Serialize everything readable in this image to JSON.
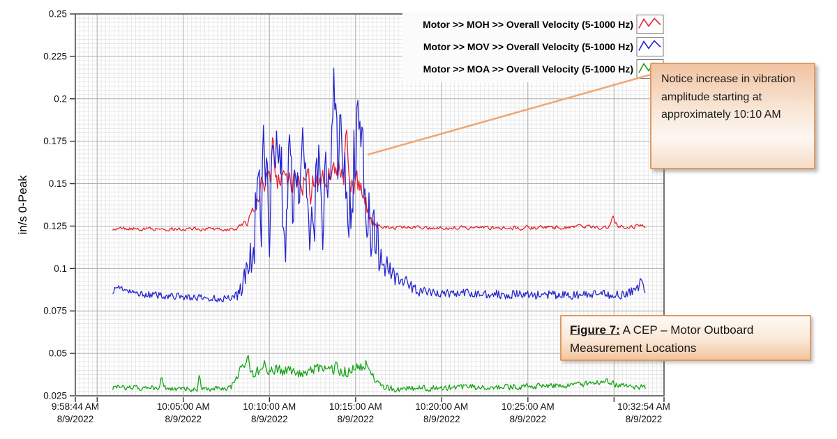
{
  "annotation": {
    "text": "Notice increase in vibration amplitude starting at approximately 10:10 AM",
    "accent_color": "#DD9A63",
    "leader_color": "#F0A875"
  },
  "caption": {
    "label": "Figure 7:",
    "text": " A CEP – Motor Outboard Measurement Locations"
  },
  "chart_data": {
    "type": "line",
    "title": "",
    "xlabel": "",
    "ylabel": "in/s 0-Peak",
    "ylim": [
      0.025,
      0.25
    ],
    "grid": true,
    "legend_position": "top-inside-right",
    "x_range_s": [
      0,
      2050
    ],
    "x_minor_step_s": 15,
    "y_minor_step": 0.0025,
    "y_ticks": [
      {
        "v": 0.25,
        "label": "0.25"
      },
      {
        "v": 0.225,
        "label": "0.225"
      },
      {
        "v": 0.2,
        "label": "0.2"
      },
      {
        "v": 0.175,
        "label": "0.175"
      },
      {
        "v": 0.15,
        "label": "0.15"
      },
      {
        "v": 0.125,
        "label": "0.125"
      },
      {
        "v": 0.1,
        "label": "0.1"
      },
      {
        "v": 0.075,
        "label": "0.075"
      },
      {
        "v": 0.05,
        "label": "0.05"
      },
      {
        "v": 0.025,
        "label": "0.025"
      }
    ],
    "x_ticks": [
      {
        "t": 0,
        "time": "9:58:44 AM",
        "date": "8/9/2022",
        "grid": false
      },
      {
        "t": 76,
        "grid": true
      },
      {
        "t": 376,
        "time": "10:05:00 AM",
        "date": "8/9/2022",
        "grid": true
      },
      {
        "t": 676,
        "time": "10:10:00 AM",
        "date": "8/9/2022",
        "grid": true
      },
      {
        "t": 976,
        "time": "10:15:00 AM",
        "date": "8/9/2022",
        "grid": true
      },
      {
        "t": 1276,
        "time": "10:20:00 AM",
        "date": "8/9/2022",
        "grid": true
      },
      {
        "t": 1576,
        "time": "10:25:00 AM",
        "date": "8/9/2022",
        "grid": true
      },
      {
        "t": 1876,
        "grid": true
      },
      {
        "t": 2050,
        "time": "10:32:54 AM",
        "date": "8/9/2022",
        "grid": false,
        "lx": 923
      }
    ],
    "event": {
      "description": "Vibration amplitude increase starting at approximately 10:10 AM",
      "start_clock": "10:09",
      "end_clock": "10:16"
    },
    "series": [
      {
        "name": "Motor >> MOH >> Overall Velocity (5-1000 Hz)",
        "short": "MOH",
        "color": "#E8232E",
        "seed": 7,
        "jaggedness": 0.55,
        "baseline": 0.1235,
        "event_peak": 0.187,
        "mean_anchors": [
          [
            130,
            0.1235
          ],
          [
            560,
            0.1232
          ],
          [
            600,
            0.128
          ],
          [
            640,
            0.146
          ],
          [
            680,
            0.155
          ],
          [
            730,
            0.15
          ],
          [
            790,
            0.153
          ],
          [
            850,
            0.152
          ],
          [
            900,
            0.157
          ],
          [
            945,
            0.156
          ],
          [
            985,
            0.148
          ],
          [
            1010,
            0.138
          ],
          [
            1035,
            0.127
          ],
          [
            1055,
            0.1243
          ],
          [
            1400,
            0.124
          ],
          [
            1855,
            0.1243
          ],
          [
            1872,
            0.1295
          ],
          [
            1890,
            0.1245
          ],
          [
            1988,
            0.1252
          ]
        ],
        "noise_anchors": [
          [
            130,
            0.0013
          ],
          [
            570,
            0.0013
          ],
          [
            620,
            0.0045
          ],
          [
            660,
            0.0095
          ],
          [
            1000,
            0.0095
          ],
          [
            1030,
            0.0045
          ],
          [
            1065,
            0.0013
          ],
          [
            1988,
            0.0015
          ]
        ],
        "spikes": [
          [
            688,
            0.184
          ],
          [
            944,
            0.187
          ],
          [
            820,
            0.137
          ],
          [
            1872,
            0.131
          ]
        ]
      },
      {
        "name": "Motor >> MOV >> Overall Velocity (5-1000 Hz)",
        "short": "MOV",
        "color": "#2626CD",
        "seed": 13,
        "jaggedness": 0.95,
        "baseline": 0.085,
        "event_peak": 0.218,
        "mean_anchors": [
          [
            130,
            0.087
          ],
          [
            155,
            0.0895
          ],
          [
            185,
            0.086
          ],
          [
            260,
            0.0845
          ],
          [
            360,
            0.0835
          ],
          [
            470,
            0.0822
          ],
          [
            530,
            0.0825
          ],
          [
            565,
            0.0845
          ],
          [
            585,
            0.092
          ],
          [
            612,
            0.106
          ],
          [
            640,
            0.138
          ],
          [
            665,
            0.15
          ],
          [
            700,
            0.142
          ],
          [
            745,
            0.15
          ],
          [
            780,
            0.143
          ],
          [
            815,
            0.136
          ],
          [
            845,
            0.148
          ],
          [
            875,
            0.16
          ],
          [
            900,
            0.175
          ],
          [
            915,
            0.158
          ],
          [
            935,
            0.148
          ],
          [
            960,
            0.15
          ],
          [
            983,
            0.17
          ],
          [
            1000,
            0.153
          ],
          [
            1013,
            0.145
          ],
          [
            1028,
            0.128
          ],
          [
            1055,
            0.11
          ],
          [
            1085,
            0.101
          ],
          [
            1125,
            0.095
          ],
          [
            1175,
            0.088
          ],
          [
            1235,
            0.0855
          ],
          [
            1450,
            0.085
          ],
          [
            1700,
            0.0842
          ],
          [
            1900,
            0.0848
          ],
          [
            1955,
            0.087
          ],
          [
            1968,
            0.0925
          ],
          [
            1980,
            0.087
          ],
          [
            1988,
            0.0858
          ]
        ],
        "noise_anchors": [
          [
            130,
            0.002
          ],
          [
            545,
            0.0022
          ],
          [
            595,
            0.0075
          ],
          [
            640,
            0.03
          ],
          [
            1015,
            0.03
          ],
          [
            1045,
            0.016
          ],
          [
            1090,
            0.008
          ],
          [
            1150,
            0.0045
          ],
          [
            1235,
            0.0028
          ],
          [
            1988,
            0.0028
          ]
        ],
        "spikes": [
          [
            656,
            0.187
          ],
          [
            700,
            0.184
          ],
          [
            747,
            0.18
          ],
          [
            791,
            0.186
          ],
          [
            900,
            0.218
          ],
          [
            908,
            0.204
          ],
          [
            923,
            0.193
          ],
          [
            985,
            0.2
          ],
          [
            997,
            0.19
          ],
          [
            676,
            0.107
          ],
          [
            732,
            0.104
          ],
          [
            817,
            0.103
          ],
          [
            862,
            0.107
          ],
          [
            951,
            0.112
          ],
          [
            1970,
            0.094
          ]
        ]
      },
      {
        "name": "Motor >> MOA >> Overall Velocity (5-1000 Hz)",
        "short": "MOA",
        "color": "#17A317",
        "seed": 21,
        "jaggedness": 0.8,
        "baseline": 0.03,
        "event_peak": 0.0495,
        "mean_anchors": [
          [
            130,
            0.03
          ],
          [
            260,
            0.0296
          ],
          [
            420,
            0.029
          ],
          [
            520,
            0.0294
          ],
          [
            552,
            0.031
          ],
          [
            575,
            0.0405
          ],
          [
            600,
            0.0465
          ],
          [
            615,
            0.039
          ],
          [
            655,
            0.0385
          ],
          [
            705,
            0.0405
          ],
          [
            765,
            0.0385
          ],
          [
            825,
            0.0408
          ],
          [
            885,
            0.0392
          ],
          [
            945,
            0.0395
          ],
          [
            1000,
            0.0428
          ],
          [
            1017,
            0.045
          ],
          [
            1042,
            0.0345
          ],
          [
            1072,
            0.03
          ],
          [
            1130,
            0.0287
          ],
          [
            1320,
            0.03
          ],
          [
            1520,
            0.0302
          ],
          [
            1730,
            0.0312
          ],
          [
            1845,
            0.0328
          ],
          [
            1925,
            0.0305
          ],
          [
            1988,
            0.0298
          ]
        ],
        "noise_anchors": [
          [
            130,
            0.0016
          ],
          [
            520,
            0.0016
          ],
          [
            560,
            0.003
          ],
          [
            600,
            0.0036
          ],
          [
            1005,
            0.0036
          ],
          [
            1060,
            0.002
          ],
          [
            1988,
            0.0018
          ]
        ],
        "spikes": [
          [
            601,
            0.0493
          ],
          [
            300,
            0.0372
          ],
          [
            432,
            0.038
          ],
          [
            658,
            0.0462
          ],
          [
            908,
            0.046
          ],
          [
            1850,
            0.0355
          ]
        ]
      }
    ],
    "data_window_s": [
      130,
      1988
    ],
    "sample_step_s": 3.5
  }
}
